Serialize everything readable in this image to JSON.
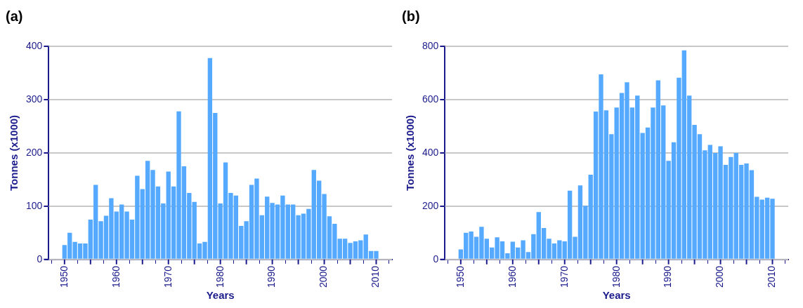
{
  "chart_data": [
    {
      "type": "bar",
      "title": "(a)",
      "xlabel": "Years",
      "ylabel": "Tonnes (x1000)",
      "xlim": [
        1949.5,
        2010.5
      ],
      "xticks": [
        1950,
        {
          "value": 1955,
          "label": null
        },
        1960,
        {
          "value": 1965,
          "label": null
        },
        1970,
        {
          "value": 1975,
          "label": null
        },
        1980,
        {
          "value": 1985,
          "label": null
        },
        1990,
        {
          "value": 1995,
          "label": null
        },
        2000,
        {
          "value": 2005,
          "label": null
        },
        2010
      ],
      "ylim": [
        0,
        400
      ],
      "yticks": [
        0,
        100,
        200,
        300,
        400
      ],
      "grid": "y",
      "legend": false,
      "x": [
        1950,
        1951,
        1952,
        1953,
        1954,
        1955,
        1956,
        1957,
        1958,
        1959,
        1960,
        1961,
        1962,
        1963,
        1964,
        1965,
        1966,
        1967,
        1968,
        1969,
        1970,
        1971,
        1972,
        1973,
        1974,
        1975,
        1976,
        1977,
        1978,
        1979,
        1980,
        1981,
        1982,
        1983,
        1984,
        1985,
        1986,
        1987,
        1988,
        1989,
        1990,
        1991,
        1992,
        1993,
        1994,
        1995,
        1996,
        1997,
        1998,
        1999,
        2000,
        2001,
        2002,
        2003,
        2004,
        2005,
        2006,
        2007,
        2008,
        2009,
        2010
      ],
      "series": [
        {
          "color": "#55aaff",
          "values": [
            27,
            50,
            33,
            30,
            30,
            75,
            140,
            72,
            82,
            115,
            90,
            103,
            90,
            75,
            157,
            132,
            185,
            168,
            137,
            105,
            165,
            137,
            278,
            175,
            125,
            108,
            30,
            33,
            378,
            275,
            105,
            182,
            125,
            120,
            63,
            72,
            140,
            152,
            83,
            118,
            106,
            103,
            120,
            103,
            103,
            83,
            86,
            95,
            168,
            148,
            123,
            81,
            67,
            39,
            39,
            31,
            34,
            36,
            47,
            16,
            16
          ]
        }
      ]
    },
    {
      "type": "bar",
      "title": "(b)",
      "xlabel": "Years",
      "ylabel": "Tonnes (x1000)",
      "xlim": [
        1949.5,
        2010.5
      ],
      "xticks": [
        1950,
        {
          "value": 1955,
          "label": null
        },
        1960,
        {
          "value": 1965,
          "label": null
        },
        1970,
        {
          "value": 1975,
          "label": null
        },
        1980,
        {
          "value": 1985,
          "label": null
        },
        1990,
        {
          "value": 1995,
          "label": null
        },
        2000,
        {
          "value": 2005,
          "label": null
        },
        2010
      ],
      "ylim": [
        0,
        800
      ],
      "yticks": [
        0,
        200,
        400,
        600,
        800
      ],
      "grid": "y",
      "legend": false,
      "x": [
        1950,
        1951,
        1952,
        1953,
        1954,
        1955,
        1956,
        1957,
        1958,
        1959,
        1960,
        1961,
        1962,
        1963,
        1964,
        1965,
        1966,
        1967,
        1968,
        1969,
        1970,
        1971,
        1972,
        1973,
        1974,
        1975,
        1976,
        1977,
        1978,
        1979,
        1980,
        1981,
        1982,
        1983,
        1984,
        1985,
        1986,
        1987,
        1988,
        1989,
        1990,
        1991,
        1992,
        1993,
        1994,
        1995,
        1996,
        1997,
        1998,
        1999,
        2000,
        2001,
        2002,
        2003,
        2004,
        2005,
        2006,
        2007,
        2008,
        2009,
        2010
      ],
      "series": [
        {
          "color": "#55aaff",
          "values": [
            38,
            100,
            105,
            85,
            123,
            78,
            45,
            83,
            68,
            23,
            67,
            45,
            72,
            28,
            95,
            178,
            118,
            78,
            60,
            72,
            68,
            258,
            85,
            278,
            202,
            318,
            555,
            695,
            560,
            470,
            570,
            625,
            665,
            570,
            615,
            475,
            495,
            570,
            672,
            578,
            370,
            440,
            682,
            785,
            615,
            505,
            470,
            410,
            430,
            400,
            425,
            355,
            385,
            400,
            355,
            360,
            335,
            235,
            225,
            232,
            228
          ]
        }
      ]
    }
  ]
}
